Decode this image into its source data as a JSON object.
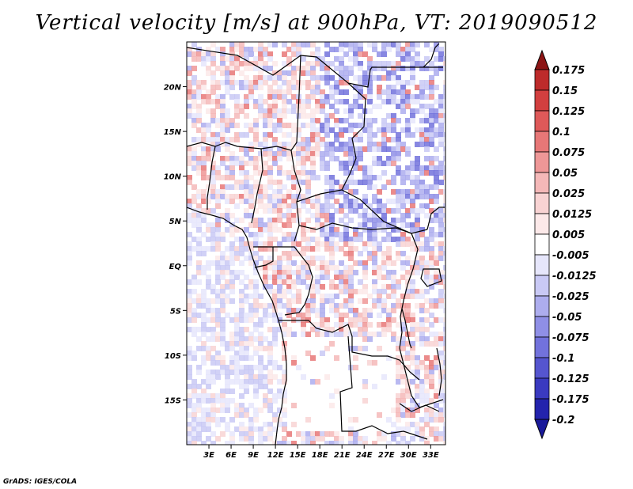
{
  "title": "Vertical velocity [m/s] at 900hPa, VT: 2019090512",
  "credit": "GrADS: IGES/COLA",
  "map": {
    "lon_range": [
      0,
      35
    ],
    "lat_range": [
      -20,
      25
    ],
    "lat_ticks": [
      {
        "lat": 20,
        "label": "20N"
      },
      {
        "lat": 15,
        "label": "15N"
      },
      {
        "lat": 10,
        "label": "10N"
      },
      {
        "lat": 5,
        "label": "5N"
      },
      {
        "lat": 0,
        "label": "EQ"
      },
      {
        "lat": -5,
        "label": "5S"
      },
      {
        "lat": -10,
        "label": "10S"
      },
      {
        "lat": -15,
        "label": "15S"
      }
    ],
    "lon_ticks": [
      {
        "lon": 3,
        "label": "3E"
      },
      {
        "lon": 6,
        "label": "6E"
      },
      {
        "lon": 9,
        "label": "9E"
      },
      {
        "lon": 12,
        "label": "12E"
      },
      {
        "lon": 15,
        "label": "15E"
      },
      {
        "lon": 18,
        "label": "18E"
      },
      {
        "lon": 21,
        "label": "21E"
      },
      {
        "lon": 24,
        "label": "24E"
      },
      {
        "lon": 27,
        "label": "27E"
      },
      {
        "lon": 30,
        "label": "30E"
      },
      {
        "lon": 33,
        "label": "33E"
      }
    ]
  },
  "colorbar": {
    "levels": [
      {
        "label": "0.175",
        "color": "#a51d1d"
      },
      {
        "label": "0.15",
        "color": "#bd2b2b"
      },
      {
        "label": "0.125",
        "color": "#d23f3f"
      },
      {
        "label": "0.1",
        "color": "#de5959"
      },
      {
        "label": "0.075",
        "color": "#e77777"
      },
      {
        "label": "0.05",
        "color": "#ee9797"
      },
      {
        "label": "0.025",
        "color": "#f4b8b8"
      },
      {
        "label": "0.0125",
        "color": "#f8d3d3"
      },
      {
        "label": "0.005",
        "color": "#fce9e9"
      },
      {
        "label": "-0.005",
        "color": "#ffffff"
      },
      {
        "label": "-0.0125",
        "color": "#e6e6fb"
      },
      {
        "label": "-0.025",
        "color": "#c9c9f5"
      },
      {
        "label": "-0.05",
        "color": "#adadee"
      },
      {
        "label": "-0.075",
        "color": "#8f8fe6"
      },
      {
        "label": "-0.1",
        "color": "#7272dc"
      },
      {
        "label": "-0.125",
        "color": "#5555cf"
      },
      {
        "label": "-0.175",
        "color": "#3a3ac0"
      },
      {
        "label": "-0.2",
        "color": "#2323ad"
      }
    ],
    "overflow_top_color": "#8c1515",
    "overflow_bottom_color": "#1a1a9a"
  }
}
